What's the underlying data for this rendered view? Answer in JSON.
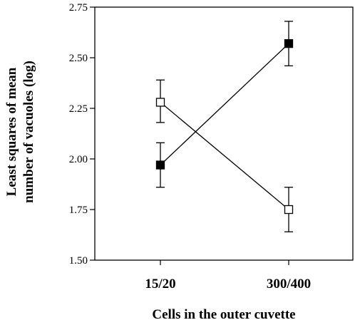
{
  "chart_data": {
    "type": "line",
    "xlabel": "Cells in the outer cuvette",
    "ylabel_lines": [
      "Least squares of mean",
      "number of vacuoles (log)"
    ],
    "categories": [
      "15/20",
      "300/400"
    ],
    "ylim": [
      1.5,
      2.75
    ],
    "yticks": [
      {
        "value": 1.5,
        "label": "1.50"
      },
      {
        "value": 1.75,
        "label": "1.75"
      },
      {
        "value": 2.0,
        "label": "2.00"
      },
      {
        "value": 2.25,
        "label": "2.25"
      },
      {
        "value": 2.5,
        "label": "2.50"
      },
      {
        "value": 2.75,
        "label": "2.75"
      }
    ],
    "grid": false,
    "legend": "none",
    "series": [
      {
        "marker": "filled-square",
        "color": "#000000",
        "values": [
          1.97,
          2.57
        ],
        "error_low": [
          1.86,
          2.46
        ],
        "error_high": [
          2.08,
          2.68
        ]
      },
      {
        "marker": "open-square",
        "color": "#000000",
        "values": [
          2.28,
          1.75
        ],
        "error_low": [
          2.18,
          1.64
        ],
        "error_high": [
          2.39,
          1.86
        ]
      }
    ]
  }
}
